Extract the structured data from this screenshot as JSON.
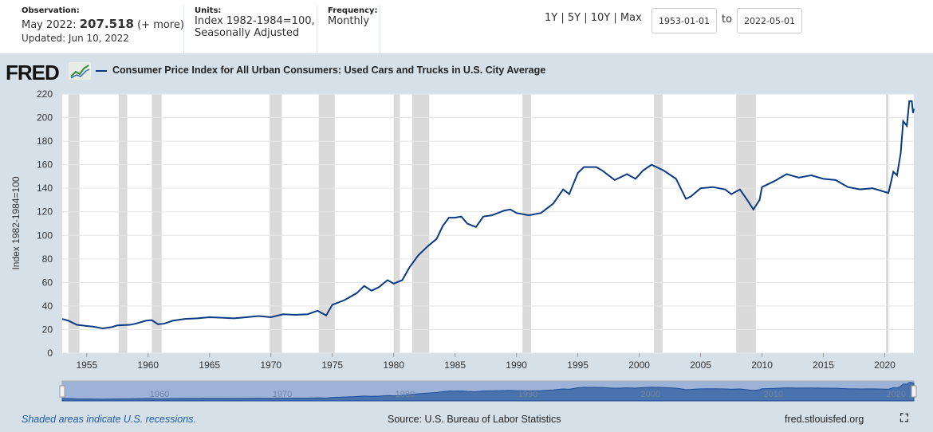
{
  "header": {
    "observation_label": "Observation:",
    "observation_period": "May 2022:",
    "observation_value": "207.518",
    "observation_more": "(+ more)",
    "updated": "Updated: Jun 10, 2022",
    "units_label": "Units:",
    "units_line1": "Index 1982-1984=100,",
    "units_line2": "Seasonally Adjusted",
    "frequency_label": "Frequency:",
    "frequency": "Monthly",
    "ranges": [
      "1Y",
      "5Y",
      "10Y",
      "Max"
    ],
    "start_date": "1953-01-01",
    "to_label": "to",
    "end_date": "2022-05-01"
  },
  "logo": "FRED",
  "chart_data": {
    "type": "line",
    "title": "Consumer Price Index for All Urban Consumers: Used Cars and Trucks in U.S. City Average",
    "ylabel": "Index 1982-1984=100",
    "xlabel": "",
    "xlim": [
      1953.0,
      2022.37
    ],
    "ylim": [
      0,
      220
    ],
    "yticks": [
      0,
      20,
      40,
      60,
      80,
      100,
      120,
      140,
      160,
      180,
      200,
      220
    ],
    "xticks": [
      1955,
      1960,
      1965,
      1970,
      1975,
      1980,
      1985,
      1990,
      1995,
      2000,
      2005,
      2010,
      2015,
      2020
    ],
    "grid": "horizontal",
    "line_color": "#0b3a84",
    "series": [
      {
        "name": "Consumer Price Index for All Urban Consumers: Used Cars and Trucks in U.S. City Average",
        "x": [
          1953.0,
          1953.5,
          1954.2,
          1955,
          1955.5,
          1956.3,
          1957,
          1957.5,
          1958.5,
          1959,
          1959.8,
          1960.3,
          1960.8,
          1961.3,
          1962,
          1963,
          1964,
          1965,
          1966,
          1967,
          1968,
          1969,
          1970,
          1971,
          1972,
          1973,
          1973.8,
          1974.5,
          1975,
          1976,
          1977,
          1977.6,
          1978.2,
          1978.8,
          1979.5,
          1980,
          1980.7,
          1981.3,
          1982,
          1982.8,
          1983.5,
          1984,
          1984.5,
          1985,
          1985.5,
          1986,
          1986.7,
          1987.3,
          1988,
          1989,
          1989.5,
          1990,
          1991,
          1992,
          1993,
          1993.8,
          1994.3,
          1995,
          1995.5,
          1996.5,
          1997,
          1998,
          1999,
          1999.7,
          2000.3,
          2001,
          2002,
          2003,
          2003.8,
          2004.2,
          2005,
          2006,
          2007,
          2007.5,
          2008.2,
          2008.8,
          2009.3,
          2009.8,
          2010,
          2011,
          2012,
          2013,
          2014,
          2015,
          2016,
          2017,
          2018,
          2019,
          2020.3,
          2020.7,
          2021.0,
          2021.3,
          2021.5,
          2021.8,
          2022.0,
          2022.2,
          2022.3,
          2022.37
        ],
        "y": [
          29,
          27.5,
          24,
          23,
          22.5,
          21,
          22,
          23.5,
          24,
          25,
          27.5,
          28,
          24.5,
          25,
          27.5,
          29,
          29.5,
          30.5,
          30,
          29.5,
          30.5,
          31.5,
          30.5,
          33,
          32.5,
          33,
          36,
          32,
          41,
          45,
          51,
          57,
          53,
          56,
          62,
          59,
          62,
          73,
          83,
          91,
          97,
          108,
          115,
          115,
          116,
          110,
          107,
          116,
          117,
          121,
          122,
          119,
          117,
          119,
          127,
          139,
          135,
          153,
          158,
          158,
          155,
          147,
          152,
          148,
          155,
          160,
          155,
          148,
          131,
          133,
          140,
          141,
          139,
          135,
          139,
          130,
          122,
          130,
          141,
          146,
          152,
          149,
          151,
          148,
          147,
          141,
          139,
          140,
          136,
          154,
          151,
          170,
          197,
          193,
          214,
          214,
          204,
          207.518
        ]
      }
    ],
    "recessions": [
      [
        1953.5,
        1954.4
      ],
      [
        1957.6,
        1958.3
      ],
      [
        1960.3,
        1961.1
      ],
      [
        1969.9,
        1970.9
      ],
      [
        1973.9,
        1975.2
      ],
      [
        1980.0,
        1980.5
      ],
      [
        1981.5,
        1982.9
      ],
      [
        1990.5,
        1991.2
      ],
      [
        2001.2,
        2001.9
      ],
      [
        2007.9,
        2009.5
      ],
      [
        2020.1,
        2020.3
      ]
    ],
    "navigator_ticks": [
      1960,
      1970,
      1980,
      1990,
      2000,
      2010,
      2020
    ]
  },
  "footer": {
    "recession_note": "Shaded areas indicate U.S. recessions.",
    "source": "Source: U.S. Bureau of Labor Statistics",
    "site": "fred.stlouisfed.org"
  }
}
